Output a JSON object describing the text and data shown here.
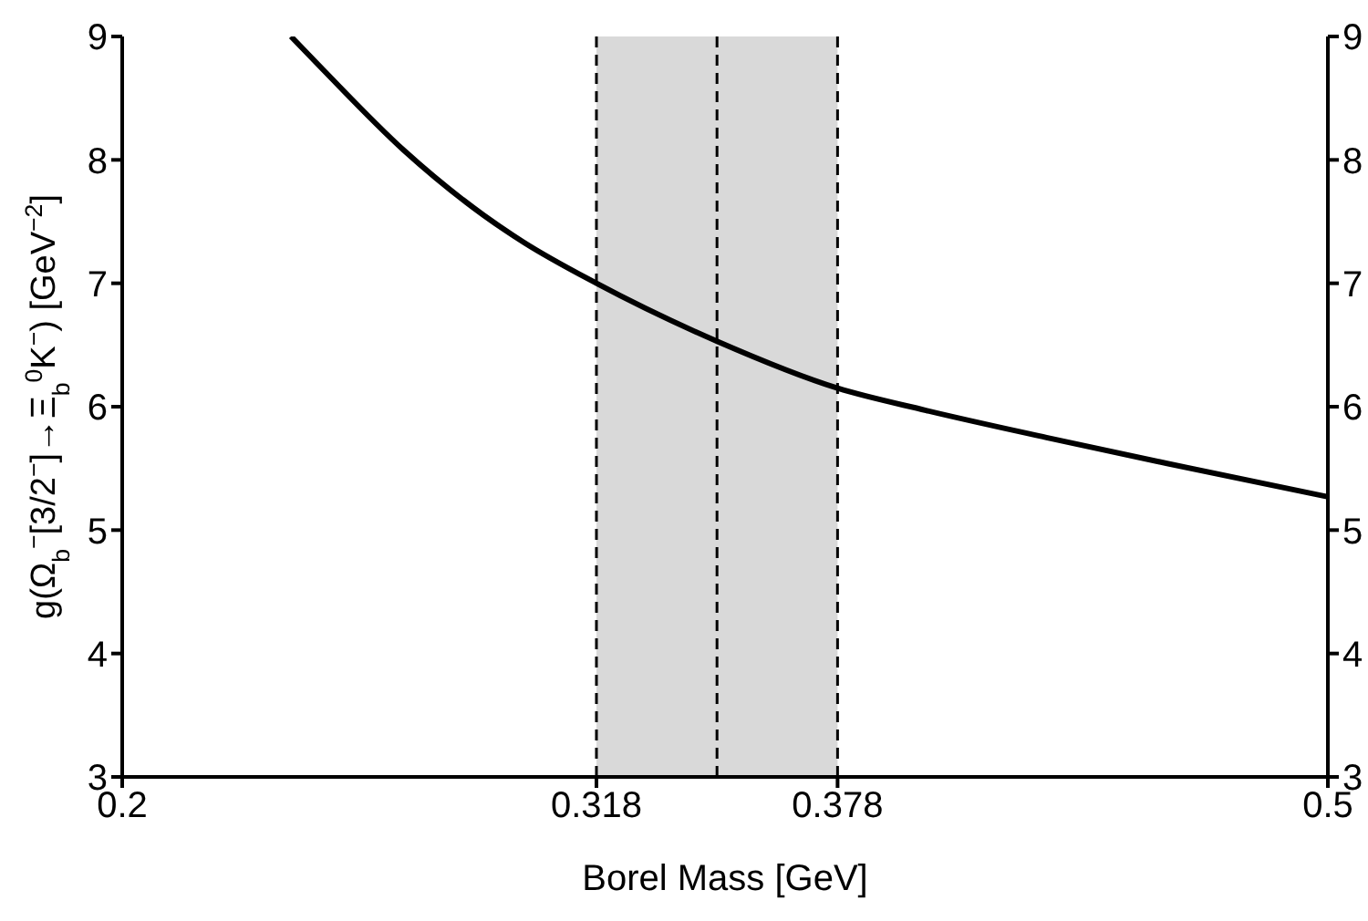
{
  "chart_data": {
    "type": "line",
    "xlabel": "Borel Mass [GeV]",
    "ylabel": "g(Ω$_{b}$$^{−}$[3/2$^{−}$]→Ξ$_{b}$$^{0}$K$^{−}$) [GeV$^{−2}$]",
    "x": [
      0.242,
      0.25,
      0.27,
      0.29,
      0.3,
      0.318,
      0.348,
      0.378,
      0.4,
      0.43,
      0.46,
      0.5
    ],
    "series": [
      {
        "color": "#000000",
        "values": [
          9,
          8.73,
          8.08,
          7.55,
          7.33,
          7.0,
          6.53,
          6.15,
          5.97,
          5.75,
          5.54,
          5.27
        ]
      }
    ],
    "xlim": [
      0.2,
      0.5
    ],
    "xticks": [
      0.2,
      0.318,
      0.378,
      0.5
    ],
    "ylim": [
      3,
      9
    ],
    "yticks": [
      3,
      4,
      5,
      6,
      7,
      8,
      9
    ],
    "y2lim": [
      3,
      9
    ],
    "y2ticks": [
      3,
      4,
      5,
      6,
      7,
      8,
      9
    ],
    "ref_lines": [
      {
        "axis": "x",
        "value": 0.318,
        "line_style": "dashed"
      },
      {
        "axis": "x",
        "value": 0.348,
        "line_style": "dashed"
      },
      {
        "axis": "x",
        "value": 0.378,
        "line_style": "dashed"
      }
    ],
    "bands": [
      {
        "axis": "x",
        "from": 0.318,
        "to": 0.378,
        "color": "#d9d9d9"
      }
    ]
  }
}
